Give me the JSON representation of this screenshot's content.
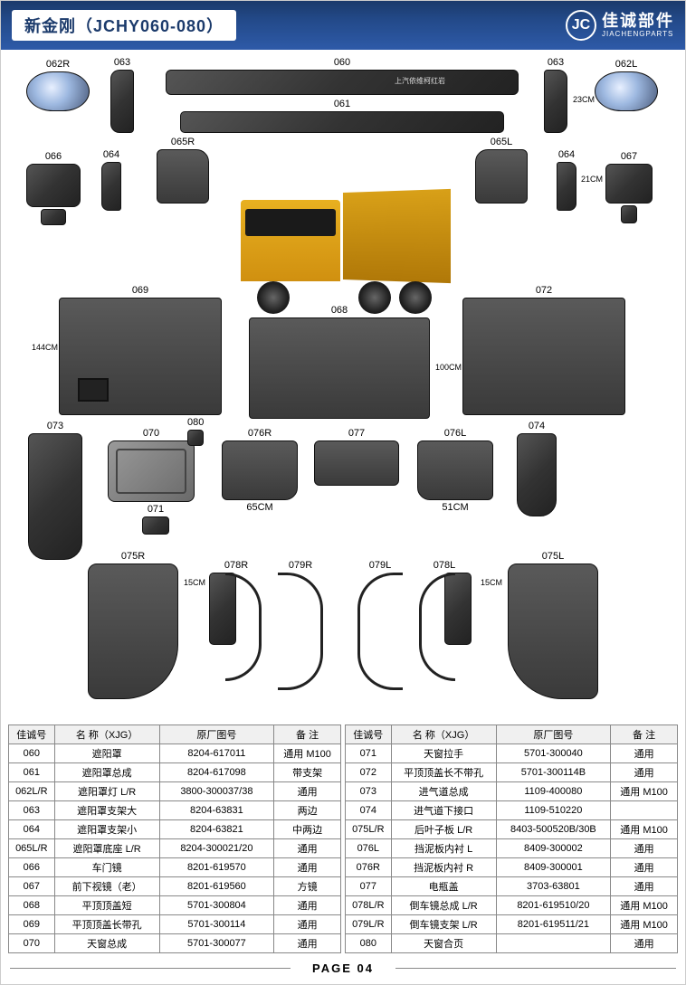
{
  "header": {
    "title": "新金刚（JCHY060-080）",
    "logo_initials": "JC",
    "logo_cn": "佳诚部件",
    "logo_en": "JIACHENGPARTS"
  },
  "parts": {
    "p060": "060",
    "p061": "061",
    "p062R": "062R",
    "p062L": "062L",
    "p063a": "063",
    "p063b": "063",
    "p064a": "064",
    "p064b": "064",
    "p065R": "065R",
    "p065L": "065L",
    "p066": "066",
    "p067": "067",
    "p068": "068",
    "p069": "069",
    "p070": "070",
    "p071": "071",
    "p072": "072",
    "p073": "073",
    "p074": "074",
    "p075R": "075R",
    "p075L": "075L",
    "p076R": "076R",
    "p076L": "076L",
    "p077": "077",
    "p078R": "078R",
    "p078L": "078L",
    "p079R": "079R",
    "p079L": "079L",
    "p080": "080"
  },
  "dims": {
    "d23": "23CM",
    "d21": "21CM",
    "d144": "144CM",
    "d100": "100CM",
    "d65": "65CM",
    "d51": "51CM",
    "d15a": "15CM",
    "d15b": "15CM"
  },
  "truck_badge": "上汽依维柯红岩",
  "table_headers": {
    "id": "佳诚号",
    "name": "名 称（XJG）",
    "oem": "原厂图号",
    "note": "备 注"
  },
  "table_left": [
    {
      "id": "060",
      "name": "遮阳罩",
      "oem": "8204-617011",
      "note": "通用 M100"
    },
    {
      "id": "061",
      "name": "遮阳罩总成",
      "oem": "8204-617098",
      "note": "带支架"
    },
    {
      "id": "062L/R",
      "name": "遮阳罩灯 L/R",
      "oem": "3800-300037/38",
      "note": "通用"
    },
    {
      "id": "063",
      "name": "遮阳罩支架大",
      "oem": "8204-63831",
      "note": "两边"
    },
    {
      "id": "064",
      "name": "遮阳罩支架小",
      "oem": "8204-63821",
      "note": "中两边"
    },
    {
      "id": "065L/R",
      "name": "遮阳罩底座 L/R",
      "oem": "8204-300021/20",
      "note": "通用"
    },
    {
      "id": "066",
      "name": "车门镜",
      "oem": "8201-619570",
      "note": "通用"
    },
    {
      "id": "067",
      "name": "前下视镜（老）",
      "oem": "8201-619560",
      "note": "方镜"
    },
    {
      "id": "068",
      "name": "平顶顶盖短",
      "oem": "5701-300804",
      "note": "通用"
    },
    {
      "id": "069",
      "name": "平顶顶盖长带孔",
      "oem": "5701-300114",
      "note": "通用"
    },
    {
      "id": "070",
      "name": "天窗总成",
      "oem": "5701-300077",
      "note": "通用"
    }
  ],
  "table_right": [
    {
      "id": "071",
      "name": "天窗拉手",
      "oem": "5701-300040",
      "note": "通用"
    },
    {
      "id": "072",
      "name": "平顶顶盖长不带孔",
      "oem": "5701-300114B",
      "note": "通用"
    },
    {
      "id": "073",
      "name": "进气道总成",
      "oem": "1109-400080",
      "note": "通用 M100"
    },
    {
      "id": "074",
      "name": "进气道下接口",
      "oem": "1109-510220",
      "note": ""
    },
    {
      "id": "075L/R",
      "name": "后叶子板 L/R",
      "oem": "8403-500520B/30B",
      "note": "通用 M100"
    },
    {
      "id": "076L",
      "name": "挡泥板内衬 L",
      "oem": "8409-300002",
      "note": "通用"
    },
    {
      "id": "076R",
      "name": "挡泥板内衬 R",
      "oem": "8409-300001",
      "note": "通用"
    },
    {
      "id": "077",
      "name": "电瓶盖",
      "oem": "3703-63801",
      "note": "通用"
    },
    {
      "id": "078L/R",
      "name": "倒车镜总成 L/R",
      "oem": "8201-619510/20",
      "note": "通用 M100"
    },
    {
      "id": "079L/R",
      "name": "倒车镜支架 L/R",
      "oem": "8201-619511/21",
      "note": "通用 M100"
    },
    {
      "id": "080",
      "name": "天窗合页",
      "oem": "",
      "note": "通用"
    }
  ],
  "footer": {
    "page": "PAGE 04"
  }
}
